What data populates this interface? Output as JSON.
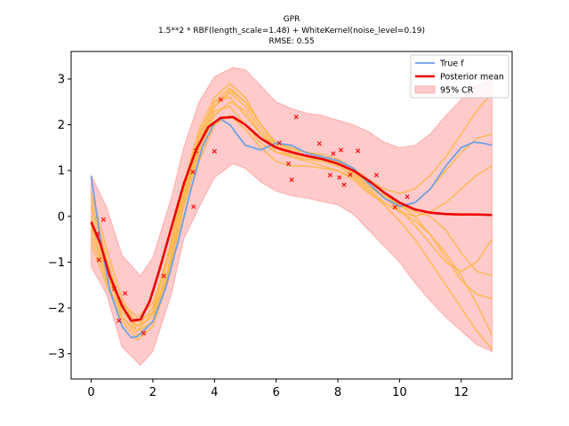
{
  "chart_data": {
    "type": "line",
    "title_lines": [
      "GPR",
      "1.5**2 * RBF(length_scale=1.48) + WhiteKernel(noise_level=0.19)",
      "RMSE: 0.55"
    ],
    "xlim": [
      -0.65,
      13.65
    ],
    "ylim": [
      -3.55,
      3.6
    ],
    "xticks": [
      0,
      2,
      4,
      6,
      8,
      10,
      12
    ],
    "yticks": [
      -3,
      -2,
      -1,
      0,
      1,
      2,
      3
    ],
    "legend_position": "top-right",
    "legend": [
      {
        "label": "True f",
        "color": "#6ea1e6",
        "kind": "line"
      },
      {
        "label": "Posterior mean",
        "color": "#ee0000",
        "kind": "line"
      },
      {
        "label": "95% CR",
        "color": "#ffcaca",
        "kind": "patch"
      }
    ],
    "true_f": {
      "name": "True f",
      "color": "#6ea1e6",
      "x": [
        0,
        0.3,
        0.6,
        1.0,
        1.3,
        1.5,
        1.7,
        2.0,
        2.4,
        2.8,
        3.2,
        3.6,
        4.0,
        4.2,
        4.5,
        5.0,
        5.5,
        6.0,
        6.5,
        7.0,
        7.5,
        8.0,
        8.5,
        9.0,
        9.5,
        10.0,
        10.5,
        11.0,
        11.5,
        12.0,
        12.4,
        12.7,
        13.0
      ],
      "y": [
        0.88,
        -0.5,
        -1.6,
        -2.4,
        -2.65,
        -2.62,
        -2.5,
        -2.3,
        -1.6,
        -0.6,
        0.5,
        1.5,
        2.05,
        2.12,
        2.0,
        1.55,
        1.45,
        1.6,
        1.55,
        1.38,
        1.3,
        1.22,
        1.05,
        0.72,
        0.4,
        0.22,
        0.3,
        0.6,
        1.1,
        1.5,
        1.62,
        1.6,
        1.55
      ]
    },
    "posterior_mean": {
      "name": "Posterior mean",
      "color": "#ee0000",
      "x": [
        0,
        0.3,
        0.6,
        1.0,
        1.3,
        1.6,
        1.9,
        2.2,
        2.6,
        3.0,
        3.4,
        3.8,
        4.2,
        4.6,
        5.0,
        5.5,
        6.0,
        6.5,
        7.0,
        7.5,
        8.0,
        8.5,
        9.0,
        9.5,
        10.0,
        10.5,
        11.0,
        11.5,
        12.0,
        12.5,
        13.0
      ],
      "y": [
        -0.12,
        -0.6,
        -1.3,
        -1.95,
        -2.28,
        -2.25,
        -1.85,
        -1.2,
        -0.25,
        0.7,
        1.45,
        1.95,
        2.15,
        2.17,
        2.0,
        1.7,
        1.5,
        1.4,
        1.32,
        1.25,
        1.15,
        1.0,
        0.78,
        0.52,
        0.3,
        0.15,
        0.08,
        0.05,
        0.04,
        0.04,
        0.03
      ]
    },
    "credible_region": {
      "name": "95% CR",
      "color": "#ffcaca",
      "x": [
        0,
        0.5,
        1.0,
        1.6,
        2.0,
        2.6,
        3.0,
        3.5,
        4.0,
        4.6,
        5.0,
        5.5,
        6.0,
        6.5,
        7.0,
        7.5,
        8.0,
        8.5,
        9.0,
        9.5,
        10.0,
        10.5,
        11.0,
        11.5,
        12.0,
        12.5,
        13.0
      ],
      "upper": [
        0.9,
        0.2,
        -0.85,
        -1.3,
        -0.9,
        0.4,
        1.5,
        2.5,
        3.05,
        3.25,
        3.2,
        2.85,
        2.5,
        2.35,
        2.25,
        2.2,
        2.1,
        2.0,
        1.85,
        1.62,
        1.5,
        1.55,
        1.8,
        2.2,
        2.55,
        2.85,
        3.0
      ],
      "lower": [
        -1.1,
        -1.7,
        -2.85,
        -3.25,
        -2.95,
        -1.7,
        -0.5,
        0.2,
        0.85,
        1.15,
        1.05,
        0.75,
        0.55,
        0.45,
        0.4,
        0.32,
        0.25,
        0.05,
        -0.3,
        -0.65,
        -1.0,
        -1.45,
        -1.85,
        -2.2,
        -2.5,
        -2.8,
        -2.95
      ]
    },
    "sample_color": "#ffb84d",
    "samples": [
      {
        "x": [
          0,
          0.5,
          1.0,
          1.5,
          2.0,
          2.5,
          3.0,
          3.5,
          4.0,
          4.5,
          5.0,
          5.5,
          6.0,
          6.5,
          7.0,
          7.5,
          8.0,
          8.5,
          9.0,
          9.5,
          10.0,
          10.5,
          11.0,
          11.5,
          12.0,
          12.5,
          13.0
        ],
        "y": [
          0.2,
          -1.0,
          -2.1,
          -2.4,
          -2.0,
          -0.8,
          0.7,
          1.9,
          2.6,
          2.9,
          2.6,
          2.0,
          1.6,
          1.5,
          1.4,
          1.3,
          1.2,
          1.0,
          0.7,
          0.4,
          0.2,
          0.3,
          0.6,
          1.0,
          1.4,
          1.7,
          1.8
        ]
      },
      {
        "x": [
          0,
          0.5,
          1.0,
          1.5,
          2.0,
          2.5,
          3.0,
          3.5,
          4.0,
          4.5,
          5.0,
          5.5,
          6.0,
          6.5,
          7.0,
          7.5,
          8.0,
          8.5,
          9.0,
          9.5,
          10.0,
          10.5,
          11.0,
          11.5,
          12.0,
          12.5,
          13.0
        ],
        "y": [
          -0.3,
          -1.3,
          -2.0,
          -2.3,
          -2.1,
          -1.2,
          0.3,
          1.5,
          2.3,
          2.4,
          2.0,
          1.6,
          1.4,
          1.35,
          1.3,
          1.2,
          1.1,
          0.9,
          0.6,
          0.3,
          0.1,
          -0.1,
          -0.4,
          -0.8,
          -1.3,
          -1.9,
          -2.6
        ]
      },
      {
        "x": [
          0,
          0.5,
          1.0,
          1.5,
          2.0,
          2.5,
          3.0,
          3.5,
          4.0,
          4.5,
          5.0,
          5.5,
          6.0,
          6.5,
          7.0,
          7.5,
          8.0,
          8.5,
          9.0,
          9.5,
          10.0,
          10.5,
          11.0,
          11.5,
          12.0,
          12.5,
          13.0
        ],
        "y": [
          0.5,
          -0.7,
          -1.8,
          -2.4,
          -2.2,
          -1.1,
          0.4,
          1.6,
          2.4,
          2.7,
          2.4,
          1.9,
          1.5,
          1.3,
          1.2,
          1.1,
          1.0,
          0.8,
          0.5,
          0.3,
          0.1,
          0.0,
          0.1,
          0.3,
          0.6,
          0.9,
          1.1
        ]
      },
      {
        "x": [
          0,
          0.5,
          1.0,
          1.5,
          2.0,
          2.5,
          3.0,
          3.5,
          4.0,
          4.5,
          5.0,
          5.5,
          6.0,
          6.5,
          7.0,
          7.5,
          8.0,
          8.5,
          9.0,
          9.5,
          10.0,
          10.5,
          11.0,
          11.5,
          12.0,
          12.5,
          13.0
        ],
        "y": [
          -0.6,
          -1.5,
          -2.3,
          -2.7,
          -2.4,
          -1.4,
          0.0,
          1.2,
          2.0,
          2.2,
          1.9,
          1.5,
          1.2,
          1.1,
          1.1,
          1.05,
          1.0,
          0.85,
          0.55,
          0.25,
          -0.1,
          -0.5,
          -1.0,
          -1.5,
          -2.0,
          -2.5,
          -2.9
        ]
      },
      {
        "x": [
          0,
          0.5,
          1.0,
          1.5,
          2.0,
          2.5,
          3.0,
          3.5,
          4.0,
          4.5,
          5.0,
          5.5,
          6.0,
          6.5,
          7.0,
          7.5,
          8.0,
          8.5,
          9.0,
          9.5,
          10.0,
          10.5,
          11.0,
          11.5,
          12.0,
          12.5,
          13.0
        ],
        "y": [
          0.0,
          -1.1,
          -2.2,
          -2.5,
          -2.1,
          -0.9,
          0.6,
          1.8,
          2.5,
          2.8,
          2.5,
          2.0,
          1.6,
          1.45,
          1.4,
          1.35,
          1.25,
          1.05,
          0.8,
          0.6,
          0.5,
          0.6,
          0.9,
          1.3,
          1.8,
          2.3,
          2.7
        ]
      },
      {
        "x": [
          0,
          0.5,
          1.0,
          1.5,
          2.0,
          2.5,
          3.0,
          3.5,
          4.0,
          4.5,
          5.0,
          5.5,
          6.0,
          6.5,
          7.0,
          7.5,
          8.0,
          8.5,
          9.0,
          9.5,
          10.0,
          10.5,
          11.0,
          11.5,
          12.0,
          12.5,
          13.0
        ],
        "y": [
          -0.2,
          -1.2,
          -1.9,
          -2.2,
          -1.9,
          -0.9,
          0.5,
          1.7,
          2.5,
          2.6,
          2.2,
          1.8,
          1.5,
          1.4,
          1.3,
          1.25,
          1.15,
          0.95,
          0.7,
          0.45,
          0.25,
          0.0,
          -0.4,
          -0.9,
          -1.4,
          -1.7,
          -1.8
        ]
      },
      {
        "x": [
          0,
          0.5,
          1.0,
          1.5,
          2.0,
          2.5,
          3.0,
          3.5,
          4.0,
          4.5,
          5.0,
          5.5,
          6.0,
          6.5,
          7.0,
          7.5,
          8.0,
          8.5,
          9.0,
          9.5,
          10.0,
          10.5,
          11.0,
          11.5,
          12.0,
          12.5,
          13.0
        ],
        "y": [
          0.35,
          -0.9,
          -2.0,
          -2.5,
          -2.3,
          -1.3,
          0.2,
          1.4,
          2.2,
          2.5,
          2.3,
          1.8,
          1.4,
          1.3,
          1.25,
          1.2,
          1.1,
          0.9,
          0.65,
          0.4,
          0.15,
          -0.2,
          -0.6,
          -1.0,
          -1.2,
          -1.0,
          -0.5
        ]
      },
      {
        "x": [
          0,
          0.5,
          1.0,
          1.5,
          2.0,
          2.5,
          3.0,
          3.5,
          4.0,
          4.5,
          5.0,
          5.5,
          6.0,
          6.5,
          7.0,
          7.5,
          8.0,
          8.5,
          9.0,
          9.5,
          10.0,
          10.5,
          11.0,
          11.5,
          12.0,
          12.5,
          13.0
        ],
        "y": [
          -0.45,
          -1.4,
          -2.2,
          -2.6,
          -2.3,
          -1.2,
          0.4,
          1.6,
          2.4,
          2.75,
          2.5,
          2.0,
          1.55,
          1.4,
          1.3,
          1.25,
          1.2,
          1.05,
          0.8,
          0.5,
          0.25,
          0.1,
          0.0,
          -0.3,
          -0.8,
          -1.2,
          -1.3
        ]
      }
    ],
    "observations": {
      "name": "observations",
      "color": "#ff0000",
      "x": [
        0.2,
        0.25,
        0.4,
        0.75,
        0.9,
        1.1,
        1.7,
        2.35,
        3.3,
        3.32,
        3.4,
        4.0,
        4.2,
        6.1,
        6.4,
        6.5,
        6.65,
        7.4,
        7.75,
        7.85,
        8.05,
        8.1,
        8.2,
        8.4,
        8.65,
        9.25,
        9.85,
        10.25
      ],
      "y": [
        -0.38,
        -0.95,
        -0.07,
        -1.58,
        -2.28,
        -1.68,
        -2.55,
        -1.3,
        0.97,
        0.21,
        1.43,
        1.42,
        2.55,
        1.6,
        1.15,
        0.8,
        2.17,
        1.59,
        0.9,
        1.37,
        0.85,
        1.45,
        0.69,
        0.91,
        1.43,
        0.9,
        0.2,
        0.43
      ]
    }
  }
}
